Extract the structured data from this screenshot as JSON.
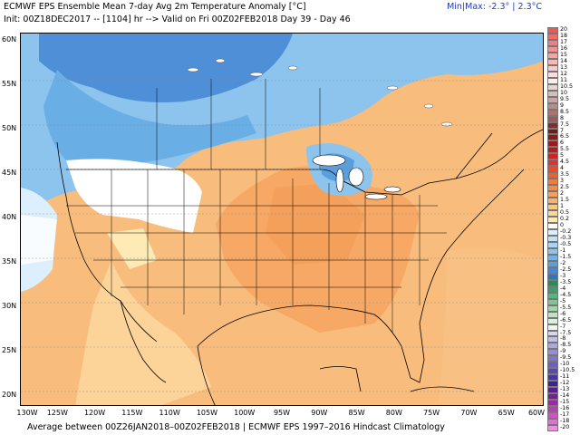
{
  "header": {
    "title": "ECMWF EPS Ensemble Mean 7-day Avg 2m Temperature Anomaly [°C]",
    "init": "Init: 00Z18DEC2017 -- [1104] hr --> Valid on Fri 00Z02FEB2018  Day 39 - Day 46",
    "minmax": "Min|Max: -2.3° | 2.3°C"
  },
  "footer": {
    "text": "Average between 00Z26JAN2018–00Z02FEB2018 | ECMWF EPS 1997–2016 Hindcast Climatology"
  },
  "axes": {
    "lat_labels": [
      "60N",
      "55N",
      "50N",
      "45N",
      "40N",
      "35N",
      "30N",
      "25N",
      "20N"
    ],
    "lon_labels": [
      "130W",
      "125W",
      "120W",
      "115W",
      "110W",
      "105W",
      "100W",
      "95W",
      "90W",
      "85W",
      "80W",
      "75W",
      "70W",
      "65W",
      "60W"
    ]
  },
  "colorbar": {
    "levels": [
      {
        "label": "20",
        "color": "#f25757"
      },
      {
        "label": "18",
        "color": "#f46a6a"
      },
      {
        "label": "17",
        "color": "#f47c7c"
      },
      {
        "label": "16",
        "color": "#f59090"
      },
      {
        "label": "15",
        "color": "#f7a3a3"
      },
      {
        "label": "14",
        "color": "#f9b7b7"
      },
      {
        "label": "13",
        "color": "#fbcaca"
      },
      {
        "label": "12",
        "color": "#fcdcdc"
      },
      {
        "label": "11",
        "color": "#fdeeee"
      },
      {
        "label": "10.5",
        "color": "#e9d4d4"
      },
      {
        "label": "10",
        "color": "#d8bcbc"
      },
      {
        "label": "9.5",
        "color": "#c8a4a4"
      },
      {
        "label": "9",
        "color": "#b88c8c"
      },
      {
        "label": "8.5",
        "color": "#a87474"
      },
      {
        "label": "8",
        "color": "#985c5c"
      },
      {
        "label": "7.5",
        "color": "#7a3030"
      },
      {
        "label": "7",
        "color": "#6a1e1e"
      },
      {
        "label": "6.5",
        "color": "#8a1a1a"
      },
      {
        "label": "6",
        "color": "#a01818"
      },
      {
        "label": "5.5",
        "color": "#b81a1a"
      },
      {
        "label": "5",
        "color": "#cc2222"
      },
      {
        "label": "4.5",
        "color": "#dd3333"
      },
      {
        "label": "4",
        "color": "#e84a2a"
      },
      {
        "label": "3.5",
        "color": "#ee6030"
      },
      {
        "label": "3",
        "color": "#f27a3a"
      },
      {
        "label": "2.5",
        "color": "#f48c48"
      },
      {
        "label": "2",
        "color": "#f6a05a"
      },
      {
        "label": "1.5",
        "color": "#f8b46c"
      },
      {
        "label": "1",
        "color": "#fac680"
      },
      {
        "label": "0.5",
        "color": "#fcd896"
      },
      {
        "label": "0.2",
        "color": "#fdeab4"
      },
      {
        "label": "0",
        "color": "#ffffff"
      },
      {
        "label": "-0.2",
        "color": "#dcefff"
      },
      {
        "label": "-0.3",
        "color": "#c2e2fb"
      },
      {
        "label": "-0.5",
        "color": "#a8d4f5"
      },
      {
        "label": "-1",
        "color": "#8cc4ee"
      },
      {
        "label": "-1.5",
        "color": "#72b2e6"
      },
      {
        "label": "-2",
        "color": "#5a9ede"
      },
      {
        "label": "-2.5",
        "color": "#4488d4"
      },
      {
        "label": "-3",
        "color": "#3472c8"
      },
      {
        "label": "-3.5",
        "color": "#2b8a5a"
      },
      {
        "label": "-4",
        "color": "#3aa06a"
      },
      {
        "label": "-4.5",
        "color": "#5ab47e"
      },
      {
        "label": "-5",
        "color": "#7ec494"
      },
      {
        "label": "-5.5",
        "color": "#a0d4aa"
      },
      {
        "label": "-6",
        "color": "#c0e2c2"
      },
      {
        "label": "-6.5",
        "color": "#dceedc"
      },
      {
        "label": "-7",
        "color": "#eef6ee"
      },
      {
        "label": "-7.5",
        "color": "#d6d6ee"
      },
      {
        "label": "-8",
        "color": "#c0c0e6"
      },
      {
        "label": "-8.5",
        "color": "#aaa8dc"
      },
      {
        "label": "-9",
        "color": "#9490d2"
      },
      {
        "label": "-9.5",
        "color": "#8078c6"
      },
      {
        "label": "-10",
        "color": "#6c60ba"
      },
      {
        "label": "-10.5",
        "color": "#5a4aae"
      },
      {
        "label": "-11",
        "color": "#4a36a0"
      },
      {
        "label": "-12",
        "color": "#3c2490"
      },
      {
        "label": "-13",
        "color": "#5c1e8a"
      },
      {
        "label": "-14",
        "color": "#7a1e90"
      },
      {
        "label": "-15",
        "color": "#9a2aa0"
      },
      {
        "label": "-16",
        "color": "#b83cb2"
      },
      {
        "label": "-17",
        "color": "#d052c4"
      },
      {
        "label": "-18",
        "color": "#e26ed6"
      },
      {
        "label": "-20",
        "color": "#f08ee6"
      }
    ]
  }
}
